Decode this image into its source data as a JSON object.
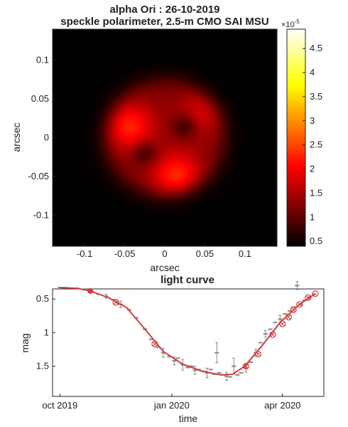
{
  "chart_data": [
    {
      "type": "heatmap",
      "title": "alpha Ori : 26-10-2019",
      "subtitle": "speckle polarimeter, 2.5-m CMO SAI MSU",
      "xlabel": "arcsec",
      "ylabel": "arcsec",
      "xlim": [
        -0.14,
        0.14
      ],
      "ylim": [
        -0.14,
        0.14
      ],
      "xticks": [
        -0.1,
        -0.05,
        0,
        0.05,
        0.1
      ],
      "xtick_labels": [
        "-0.1",
        "-0.05",
        "0",
        "0.05",
        "0.1"
      ],
      "yticks": [
        0.1,
        0.05,
        0,
        -0.05,
        -0.1
      ],
      "ytick_labels": [
        "0.1",
        "0.05",
        "0",
        "-0.05",
        "-0.1"
      ],
      "colorbar": {
        "exponent_label": "×10",
        "exponent_power": "-5",
        "range": [
          0.4,
          4.9
        ],
        "ticks": [
          4.5,
          4,
          3.5,
          3,
          2.5,
          2,
          1.5,
          1,
          0.5
        ],
        "tick_labels": [
          "4.5",
          "4",
          "3.5",
          "3",
          "2.5",
          "2",
          "1.5",
          "1",
          "0.5"
        ],
        "colormap": "hot"
      },
      "image": {
        "background_value": 0.4,
        "disk_center": [
          0.0,
          0.0
        ],
        "disk_radius_arcsec": 0.075,
        "bright_lobes": [
          {
            "x": -0.045,
            "y": 0.015,
            "value": 2.05
          },
          {
            "x": 0.015,
            "y": -0.05,
            "value": 2.1
          },
          {
            "x": 0.05,
            "y": 0.035,
            "value": 1.6
          }
        ],
        "dark_spots": [
          {
            "x": 0.025,
            "y": 0.015,
            "value": 0.7
          },
          {
            "x": -0.025,
            "y": -0.02,
            "value": 0.7
          }
        ]
      }
    },
    {
      "type": "line",
      "title": "light curve",
      "xlabel": "time",
      "ylabel": "mag",
      "y_reversed": true,
      "xlim": [
        "2019-09-25",
        "2020-05-05"
      ],
      "ylim": [
        0.35,
        1.95
      ],
      "xticks": [
        "2019-10-01",
        "2020-01-01",
        "2020-04-01"
      ],
      "xtick_labels": [
        "oct 2019",
        "jan 2020",
        "apr 2020"
      ],
      "yticks": [
        0.5,
        1,
        1.5
      ],
      "ytick_labels": [
        "0.5",
        "1",
        "1.5"
      ],
      "grid": false,
      "colors": {
        "observations": "#888888",
        "model": "#d23c3c"
      },
      "series": [
        {
          "values": [
            {
              "x": "2019-10-01",
              "y": 0.33
            },
            {
              "x": "2019-10-05",
              "y": 0.33
            },
            {
              "x": "2019-10-15",
              "y": 0.34
            },
            {
              "x": "2019-10-22",
              "y": 0.36
            },
            {
              "x": "2019-10-26",
              "y": 0.38
            },
            {
              "x": "2019-11-02",
              "y": 0.43
            },
            {
              "x": "2019-11-08",
              "y": 0.46,
              "err": 0.03
            },
            {
              "x": "2019-11-14",
              "y": 0.51
            },
            {
              "x": "2019-11-20",
              "y": 0.58,
              "err": 0.05
            },
            {
              "x": "2019-11-27",
              "y": 0.66
            },
            {
              "x": "2019-12-03",
              "y": 0.78
            },
            {
              "x": "2019-12-10",
              "y": 0.95
            },
            {
              "x": "2019-12-15",
              "y": 1.1
            },
            {
              "x": "2019-12-21",
              "y": 1.22
            },
            {
              "x": "2019-12-25",
              "y": 1.3,
              "err": 0.07
            },
            {
              "x": "2019-12-30",
              "y": 1.36
            },
            {
              "x": "2020-01-03",
              "y": 1.42,
              "err": 0.06
            },
            {
              "x": "2020-01-06",
              "y": 1.38
            },
            {
              "x": "2020-01-10",
              "y": 1.48,
              "err": 0.08
            },
            {
              "x": "2020-01-14",
              "y": 1.52
            },
            {
              "x": "2020-01-17",
              "y": 1.5
            },
            {
              "x": "2020-01-20",
              "y": 1.56,
              "err": 0.06
            },
            {
              "x": "2020-01-23",
              "y": 1.55
            },
            {
              "x": "2020-01-27",
              "y": 1.58
            },
            {
              "x": "2020-01-30",
              "y": 1.6,
              "err": 0.07
            },
            {
              "x": "2020-02-02",
              "y": 1.55
            },
            {
              "x": "2020-02-05",
              "y": 1.62
            },
            {
              "x": "2020-02-07",
              "y": 1.3,
              "err": 0.15
            },
            {
              "x": "2020-02-09",
              "y": 1.6
            },
            {
              "x": "2020-02-12",
              "y": 1.63
            },
            {
              "x": "2020-02-15",
              "y": 1.65,
              "err": 0.06
            },
            {
              "x": "2020-02-18",
              "y": 1.66
            },
            {
              "x": "2020-02-21",
              "y": 1.5,
              "err": 0.12
            },
            {
              "x": "2020-02-24",
              "y": 1.63
            },
            {
              "x": "2020-02-27",
              "y": 1.6
            },
            {
              "x": "2020-03-02",
              "y": 1.53,
              "err": 0.06
            },
            {
              "x": "2020-03-06",
              "y": 1.44
            },
            {
              "x": "2020-03-10",
              "y": 1.3,
              "err": 0.05
            },
            {
              "x": "2020-03-14",
              "y": 1.15
            },
            {
              "x": "2020-03-18",
              "y": 1.02,
              "err": 0.05
            },
            {
              "x": "2020-03-22",
              "y": 0.95
            },
            {
              "x": "2020-03-26",
              "y": 0.85
            },
            {
              "x": "2020-03-30",
              "y": 0.8,
              "err": 0.06
            },
            {
              "x": "2020-04-03",
              "y": 0.72
            },
            {
              "x": "2020-04-07",
              "y": 0.68
            },
            {
              "x": "2020-04-10",
              "y": 0.62
            },
            {
              "x": "2020-04-13",
              "y": 0.3,
              "err": 0.06
            },
            {
              "x": "2020-04-16",
              "y": 0.58
            },
            {
              "x": "2020-04-19",
              "y": 0.52
            },
            {
              "x": "2020-04-23",
              "y": 0.48
            },
            {
              "x": "2020-04-27",
              "y": 0.43
            }
          ]
        },
        {
          "values": [
            {
              "x": "2019-10-01",
              "y": 0.33
            },
            {
              "x": "2019-10-15",
              "y": 0.34
            },
            {
              "x": "2019-10-26",
              "y": 0.38
            },
            {
              "x": "2019-11-10",
              "y": 0.48
            },
            {
              "x": "2019-11-25",
              "y": 0.63
            },
            {
              "x": "2019-12-10",
              "y": 0.95
            },
            {
              "x": "2019-12-25",
              "y": 1.28
            },
            {
              "x": "2020-01-10",
              "y": 1.47
            },
            {
              "x": "2020-01-25",
              "y": 1.57
            },
            {
              "x": "2020-02-10",
              "y": 1.63
            },
            {
              "x": "2020-02-20",
              "y": 1.62
            },
            {
              "x": "2020-03-01",
              "y": 1.5
            },
            {
              "x": "2020-03-15",
              "y": 1.2
            },
            {
              "x": "2020-03-30",
              "y": 0.85
            },
            {
              "x": "2020-04-15",
              "y": 0.58
            },
            {
              "x": "2020-04-28",
              "y": 0.42
            }
          ]
        },
        {
          "values": [
            {
              "x": "2019-10-26",
              "y": 0.38,
              "marker": "filled"
            },
            {
              "x": "2019-11-16",
              "y": 0.55,
              "marker": "open-x"
            },
            {
              "x": "2019-12-18",
              "y": 1.17,
              "marker": "open-x"
            },
            {
              "x": "2020-03-02",
              "y": 1.5,
              "marker": "open-x"
            },
            {
              "x": "2020-03-12",
              "y": 1.32,
              "marker": "open-x"
            },
            {
              "x": "2020-03-24",
              "y": 1.03,
              "marker": "open-x"
            },
            {
              "x": "2020-04-01",
              "y": 0.87,
              "marker": "open-x"
            },
            {
              "x": "2020-04-06",
              "y": 0.77,
              "marker": "open-x"
            },
            {
              "x": "2020-04-10",
              "y": 0.66,
              "marker": "open-x"
            },
            {
              "x": "2020-04-15",
              "y": 0.58,
              "marker": "open-x"
            },
            {
              "x": "2020-04-22",
              "y": 0.48,
              "marker": "open-x"
            },
            {
              "x": "2020-04-28",
              "y": 0.42,
              "marker": "open"
            }
          ]
        }
      ]
    }
  ]
}
